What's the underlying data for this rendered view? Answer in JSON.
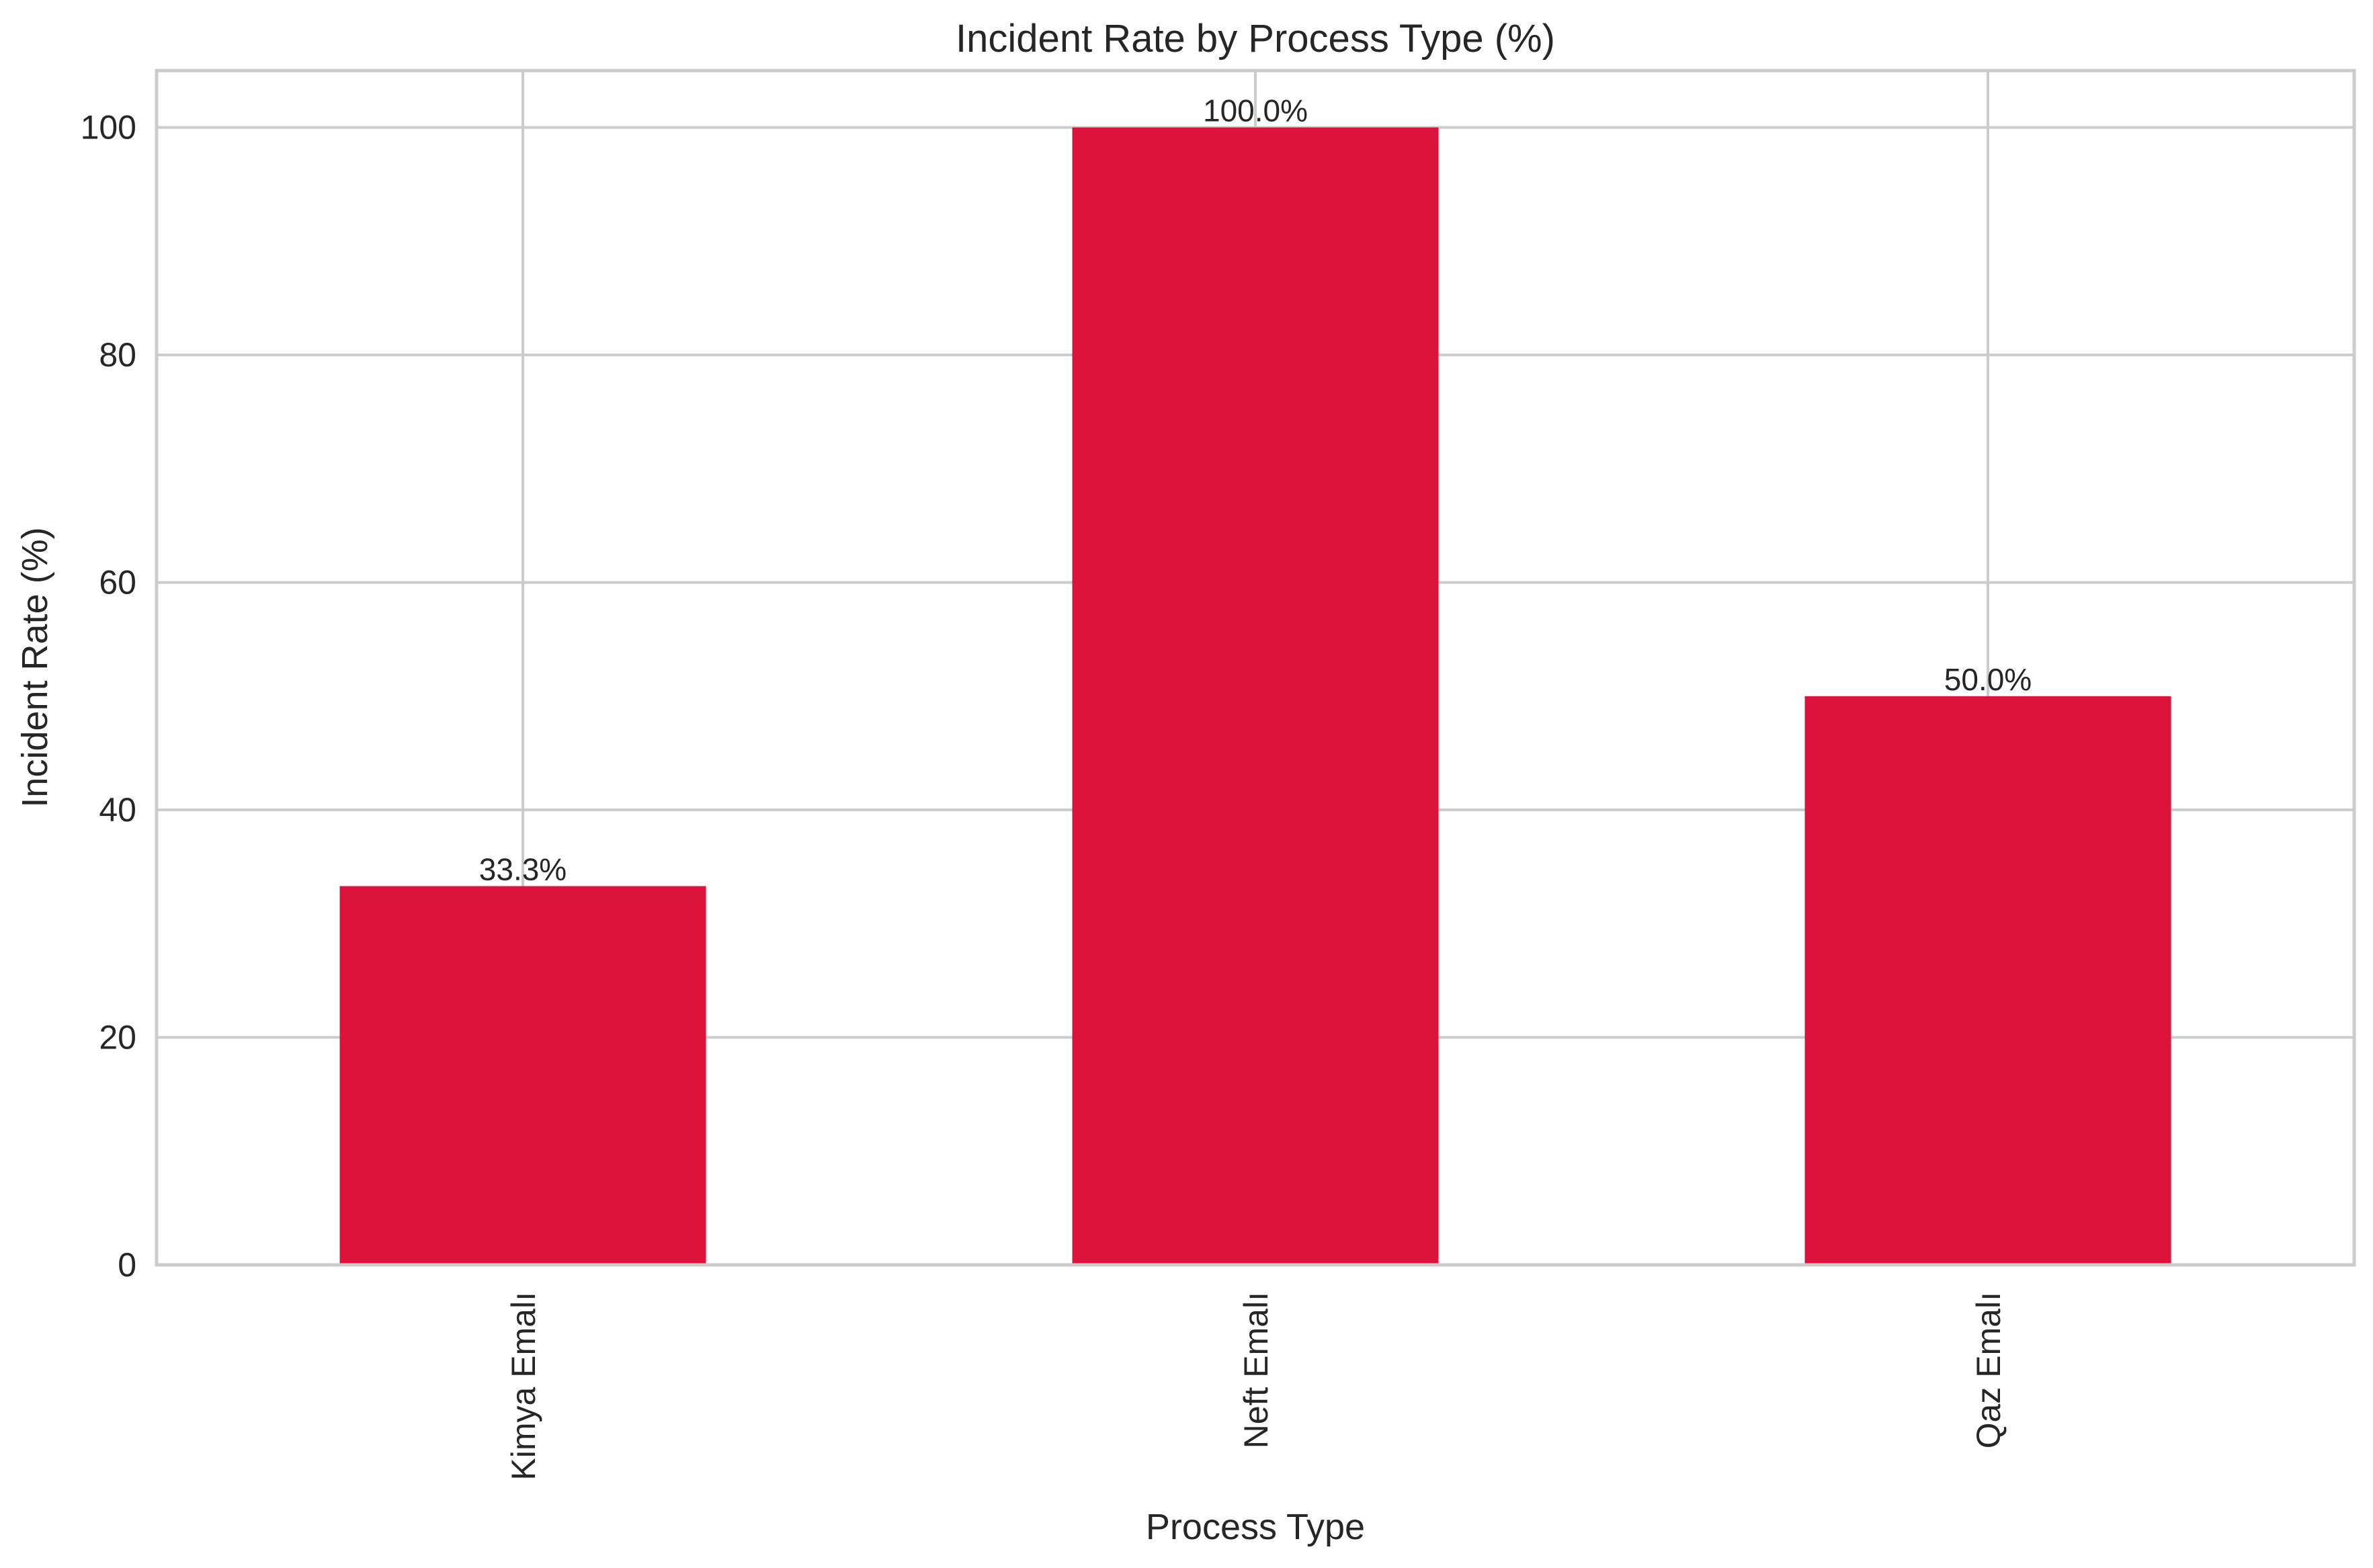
{
  "chart_data": {
    "type": "bar",
    "title": "Incident Rate by Process Type (%)",
    "xlabel": "Process Type",
    "ylabel": "Incident Rate (%)",
    "categories": [
      "Kimya Emalı",
      "Neft Emalı",
      "Qaz Emalı"
    ],
    "values": [
      33.3,
      100.0,
      50.0
    ],
    "data_labels": [
      "33.3%",
      "100.0%",
      "50.0%"
    ],
    "ylim": [
      0,
      105
    ],
    "yticks": [
      0,
      20,
      40,
      60,
      80,
      100
    ],
    "grid": true,
    "legend": "none",
    "bar_color": "#dc143c",
    "xtick_rotation": "vertical"
  }
}
